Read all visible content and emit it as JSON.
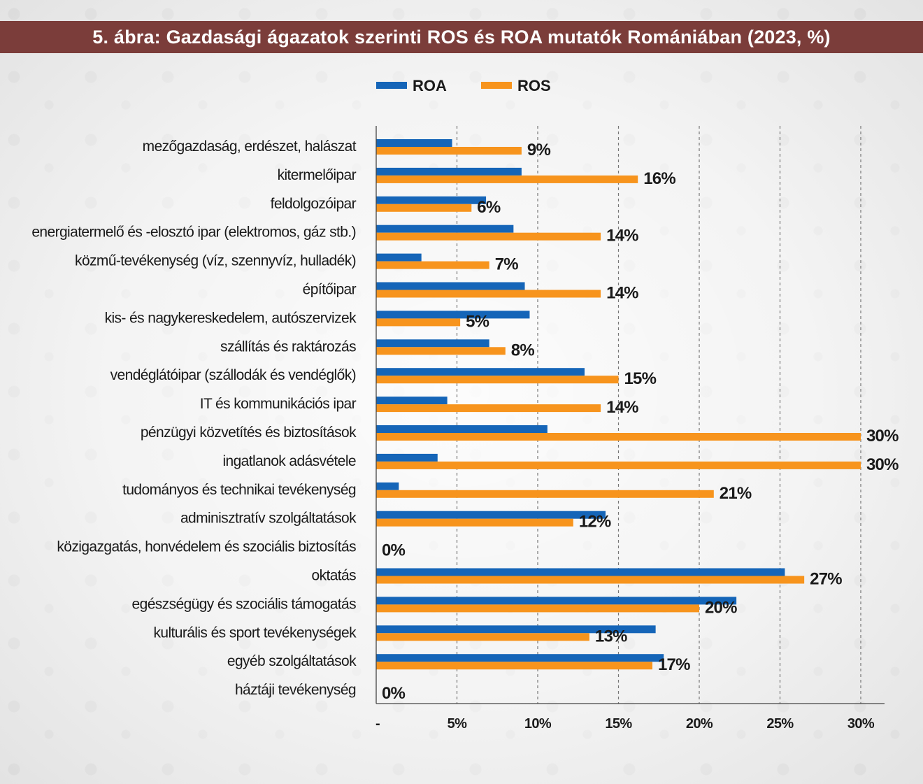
{
  "title": "5. ábra: Gazdasági ágazatok szerinti ROS és ROA mutatók Romániában (2023, %)",
  "colors": {
    "roa": "#1565b8",
    "ros": "#f7941d",
    "header": "#7b3d3a"
  },
  "chart_data": {
    "type": "bar",
    "orientation": "horizontal",
    "title": "5. ábra: Gazdasági ágazatok szerinti ROS és ROA mutatók Romániában (2023, %)",
    "xlim": [
      0,
      31
    ],
    "x_ticks": [
      {
        "value": 0,
        "label": "-"
      },
      {
        "value": 5,
        "label": "5%"
      },
      {
        "value": 10,
        "label": "10%"
      },
      {
        "value": 15,
        "label": "15%"
      },
      {
        "value": 20,
        "label": "20%"
      },
      {
        "value": 25,
        "label": "25%"
      },
      {
        "value": 30,
        "label": "30%"
      }
    ],
    "grid": "vertical-dashed",
    "legend": "top-center",
    "categories": [
      "mezőgazdaság, erdészet, halászat",
      "kitermelőipar",
      "feldolgozóipar",
      "energiatermelő és -elosztó ipar (elektromos, gáz stb.)",
      "közmű-tevékenység (víz, szennyvíz, hulladék)",
      "építőipar",
      "kis- és nagykereskedelem, autószervizek",
      "szállítás és raktározás",
      "vendéglátóipar (szállodák és vendéglők)",
      "IT és kommunikációs ipar",
      "pénzügyi közvetítés és biztosítások",
      "ingatlanok adásvétele",
      "tudományos és technikai tevékenység",
      "adminisztratív szolgáltatások",
      "közigazgatás, honvédelem és szociális biztosítás",
      "oktatás",
      "egészségügy és szociális támogatás",
      "kulturális és sport tevékenységek",
      "egyéb szolgáltatások",
      "háztáji tevékenység"
    ],
    "series": [
      {
        "name": "ROA",
        "values": [
          4.7,
          9.0,
          6.8,
          8.5,
          2.8,
          9.2,
          9.5,
          7.0,
          12.9,
          4.4,
          10.6,
          3.8,
          1.4,
          14.2,
          0,
          25.3,
          22.3,
          17.3,
          17.8,
          0
        ]
      },
      {
        "name": "ROS",
        "values": [
          9.0,
          16.2,
          5.9,
          13.9,
          7.0,
          13.9,
          5.2,
          8.0,
          15.0,
          13.9,
          30.0,
          30.0,
          20.9,
          12.2,
          0,
          26.5,
          20.0,
          13.2,
          17.1,
          0
        ]
      }
    ],
    "data_labels": [
      "9%",
      "16%",
      "6%",
      "14%",
      "7%",
      "14%",
      "5%",
      "8%",
      "15%",
      "14%",
      "30%",
      "30%",
      "21%",
      "12%",
      "0%",
      "27%",
      "20%",
      "13%",
      "17%",
      "0%"
    ]
  }
}
